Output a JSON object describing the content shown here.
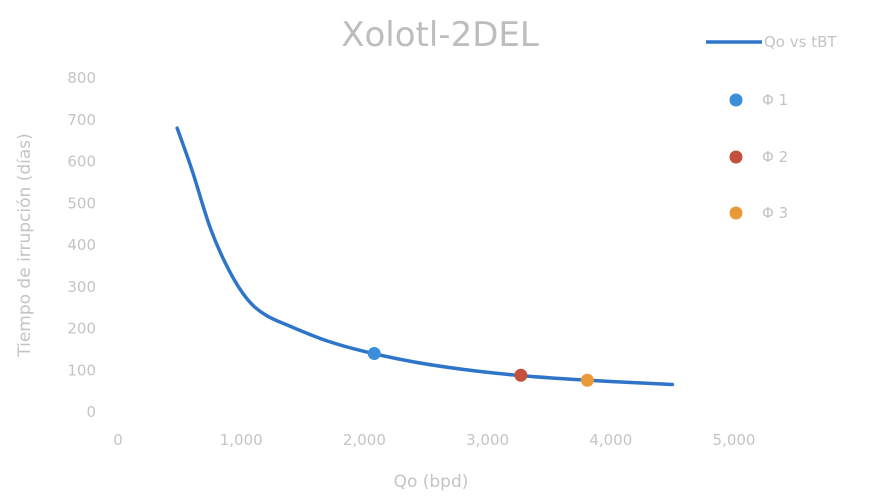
{
  "chart_data": {
    "type": "scatter",
    "title": "Xolotl-2DEL",
    "xlabel": "Qo (bpd)",
    "ylabel": "Tiempo de irrupción (días)",
    "xlim": [
      0,
      5000
    ],
    "ylim": [
      0,
      800
    ],
    "x_ticks": [
      0,
      1000,
      2000,
      3000,
      4000,
      5000
    ],
    "x_tick_labels": [
      "0",
      "1,000",
      "2,000",
      "3,000",
      "4,000",
      "5,000"
    ],
    "y_ticks": [
      0,
      100,
      200,
      300,
      400,
      500,
      600,
      700,
      800
    ],
    "y_tick_labels": [
      "0",
      "100",
      "200",
      "300",
      "400",
      "500",
      "600",
      "700",
      "800"
    ],
    "grid": false,
    "legend_position": "right",
    "series": [
      {
        "name": "Qo vs tBT",
        "kind": "line",
        "color": "#2e75c9",
        "points": [
          [
            480,
            680
          ],
          [
            600,
            580
          ],
          [
            750,
            440
          ],
          [
            900,
            340
          ],
          [
            1050,
            270
          ],
          [
            1200,
            232
          ],
          [
            1400,
            205
          ],
          [
            1700,
            170
          ],
          [
            2000,
            145
          ],
          [
            2400,
            120
          ],
          [
            2800,
            102
          ],
          [
            3200,
            89
          ],
          [
            3600,
            80
          ],
          [
            4000,
            73
          ],
          [
            4500,
            66
          ]
        ]
      },
      {
        "name": "Φ 1",
        "kind": "point",
        "color": "#3b8fd9",
        "points": [
          [
            2080,
            140
          ]
        ]
      },
      {
        "name": "Φ 2",
        "kind": "point",
        "color": "#c4513c",
        "points": [
          [
            3270,
            88
          ]
        ]
      },
      {
        "name": "Φ 3",
        "kind": "point",
        "color": "#e89a38",
        "points": [
          [
            3810,
            76
          ]
        ]
      }
    ]
  }
}
